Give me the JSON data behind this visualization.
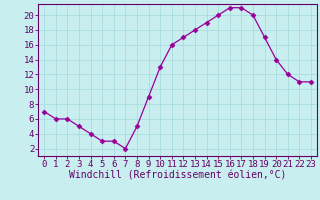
{
  "hours": [
    0,
    1,
    2,
    3,
    4,
    5,
    6,
    7,
    8,
    9,
    10,
    11,
    12,
    13,
    14,
    15,
    16,
    17,
    18,
    19,
    20,
    21,
    22,
    23
  ],
  "values": [
    7,
    6,
    6,
    5,
    4,
    3,
    3,
    2,
    5,
    9,
    13,
    16,
    17,
    18,
    19,
    20,
    21,
    21,
    20,
    17,
    14,
    12,
    11,
    11
  ],
  "line_color": "#990099",
  "marker": "D",
  "marker_size": 2.5,
  "bg_color": "#c8eef0",
  "grid_color": "#aadddd",
  "ylim": [
    1,
    21.5
  ],
  "yticks": [
    2,
    4,
    6,
    8,
    10,
    12,
    14,
    16,
    18,
    20
  ],
  "xlim": [
    -0.5,
    23.5
  ],
  "axis_color": "#660066",
  "tick_color": "#660066",
  "xlabel": "Windchill (Refroidissement éolien,°C)",
  "xlabel_color": "#660066",
  "xlabel_fontsize": 7,
  "tick_fontsize": 6.5
}
